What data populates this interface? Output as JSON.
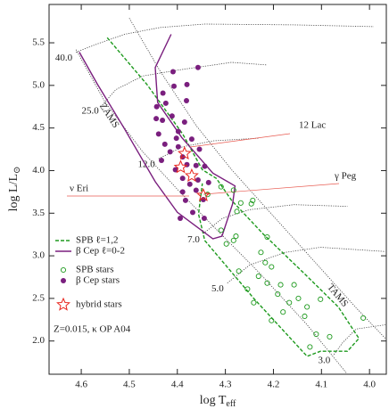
{
  "chart_data": {
    "type": "scatter",
    "xlabel": {
      "main": "log T",
      "sub": "eff"
    },
    "ylabel": {
      "main": "log L/L",
      "sub": "⊙"
    },
    "xlim": [
      4.667,
      3.965
    ],
    "ylim": [
      1.61,
      5.95
    ],
    "xticks": [
      {
        "value": 4.6,
        "label": "4.6"
      },
      4.5,
      4.4,
      4.3,
      4.2,
      4.1,
      {
        "value": 4.0,
        "label": "4.0"
      }
    ],
    "yticks": [
      {
        "value": 2,
        "label": "2.0"
      },
      2.5,
      {
        "value": 3,
        "label": "3.0"
      },
      3.5,
      {
        "value": 4,
        "label": "4.0"
      },
      4.5,
      {
        "value": 5,
        "label": "5.0"
      },
      5.5
    ],
    "note": "Z=0.015, κ OP A04",
    "tracks": [
      {
        "label": "40.0",
        "x": [
          4.611,
          4.565,
          4.51,
          4.435,
          4.343,
          4.157,
          3.991
        ],
        "y": [
          5.39,
          5.49,
          5.6,
          5.68,
          5.72,
          5.71,
          5.69
        ]
      },
      {
        "label": "25.0",
        "x": [
          4.556,
          4.528,
          4.472,
          4.398,
          4.287,
          4.213
        ],
        "y": [
          4.77,
          4.95,
          5.11,
          5.18,
          5.27,
          5.24
        ]
      },
      {
        "label": "12.0",
        "x": [
          4.439,
          4.389,
          4.324,
          4.231
        ],
        "y": [
          4.14,
          4.28,
          4.35,
          4.38
        ]
      },
      {
        "label": "7.0",
        "x": [
          4.346,
          4.306,
          4.25,
          4.157,
          4.046
        ],
        "y": [
          3.26,
          3.44,
          3.54,
          3.6,
          3.58
        ]
      },
      {
        "label": "5.0",
        "x": [
          4.296,
          4.25,
          4.176,
          4.102,
          3.967
        ],
        "y": [
          2.68,
          2.89,
          3.04,
          3.1,
          3.05
        ]
      },
      {
        "label": "3.0",
        "x": [
          4.074,
          4.056,
          4.028,
          3.967
        ],
        "y": [
          1.84,
          1.98,
          2.14,
          2.19
        ]
      }
    ],
    "boundaries": [
      {
        "label": "ZAMS",
        "x": [
          4.611,
          4.55,
          4.472,
          4.398,
          4.324,
          4.231,
          4.13,
          4.046
        ],
        "y": [
          5.42,
          4.8,
          4.22,
          3.77,
          3.34,
          2.81,
          2.19,
          1.61
        ]
      },
      {
        "label": "TAMS",
        "x": [
          4.5,
          4.435,
          4.361,
          4.287,
          4.204,
          4.111,
          4.028,
          3.967
        ],
        "y": [
          5.79,
          5.16,
          4.53,
          4.01,
          3.49,
          2.91,
          2.39,
          2.03
        ]
      }
    ],
    "strips": [
      {
        "name": "SPB  ℓ=1,2",
        "color": "#1e9a1e",
        "dash": true,
        "x": [
          4.546,
          4.463,
          4.389,
          4.348,
          4.319,
          4.287,
          4.222,
          4.139,
          4.065,
          4.022,
          4.046,
          4.102,
          4.13,
          4.241,
          4.343,
          4.356,
          4.348
        ],
        "y": [
          5.56,
          5.01,
          4.43,
          4.01,
          3.91,
          3.65,
          3.26,
          2.81,
          2.4,
          2.03,
          1.88,
          1.88,
          1.82,
          2.5,
          3.18,
          3.49,
          3.85
        ]
      },
      {
        "name": "β Cep ℓ=0-2",
        "color": "#7a1f7e",
        "dash": false,
        "x": [
          4.413,
          4.446,
          4.441,
          4.391,
          4.326,
          4.28,
          4.285,
          4.307,
          4.326,
          4.4,
          4.446,
          4.511,
          4.567,
          4.604
        ],
        "y": [
          5.6,
          5.21,
          4.8,
          4.39,
          3.97,
          3.82,
          3.61,
          3.23,
          3.2,
          3.51,
          3.87,
          4.5,
          5.02,
          5.39
        ]
      }
    ],
    "series": [
      {
        "name": "SPB stars",
        "marker": "open-circle",
        "color": "#1e9a1e",
        "x": [
          4.309,
          4.283,
          4.337,
          4.268,
          4.276,
          4.243,
          4.246,
          4.309,
          4.278,
          4.283,
          4.298,
          4.226,
          4.213,
          4.217,
          4.272,
          4.231,
          4.204,
          4.185,
          4.191,
          4.167,
          4.157,
          4.213,
          4.254,
          4.18,
          4.135,
          4.204,
          4.083,
          4.111,
          4.124,
          4.013,
          4.13,
          4.241,
          4.148,
          4.102
        ],
        "y": [
          3.81,
          3.77,
          3.72,
          3.62,
          3.52,
          3.65,
          3.61,
          3.3,
          3.23,
          3.18,
          3.14,
          3.04,
          3.22,
          2.92,
          2.82,
          2.76,
          2.87,
          2.66,
          2.55,
          2.45,
          2.66,
          2.68,
          2.61,
          2.34,
          2.29,
          2.24,
          2.05,
          2.08,
          1.93,
          2.27,
          2.4,
          2.45,
          2.5,
          2.49
        ]
      },
      {
        "name": "β Cep stars",
        "marker": "dot",
        "color": "#7a1f7e",
        "x": [
          4.409,
          4.357,
          4.38,
          4.407,
          4.43,
          4.381,
          4.443,
          4.424,
          4.411,
          4.444,
          4.431,
          4.385,
          4.398,
          4.439,
          4.402,
          4.37,
          4.426,
          4.398,
          4.415,
          4.354,
          4.433,
          4.389,
          4.38,
          4.361,
          4.343,
          4.404,
          4.389,
          4.374,
          4.357,
          4.335,
          4.389,
          4.361,
          4.383,
          4.346,
          4.394,
          4.344,
          4.368
        ],
        "y": [
          5.16,
          5.21,
          5.01,
          4.99,
          4.91,
          4.82,
          4.75,
          4.79,
          4.64,
          4.61,
          4.59,
          4.57,
          4.46,
          4.43,
          4.38,
          4.37,
          4.31,
          4.28,
          4.22,
          4.25,
          4.12,
          4.16,
          4.07,
          4.06,
          4.05,
          4.01,
          3.91,
          3.84,
          3.89,
          3.86,
          3.75,
          3.77,
          3.65,
          3.66,
          3.44,
          3.44,
          3.51
        ]
      },
      {
        "name": "hybrid stars",
        "marker": "star",
        "color": "#e8261e",
        "x": [
          4.385,
          4.37,
          4.346,
          4.393
        ],
        "y": [
          4.2,
          3.94,
          3.71,
          4.04
        ]
      }
    ],
    "annotations": [
      "12 Lac",
      "γ Peg",
      "ν Eri"
    ]
  }
}
